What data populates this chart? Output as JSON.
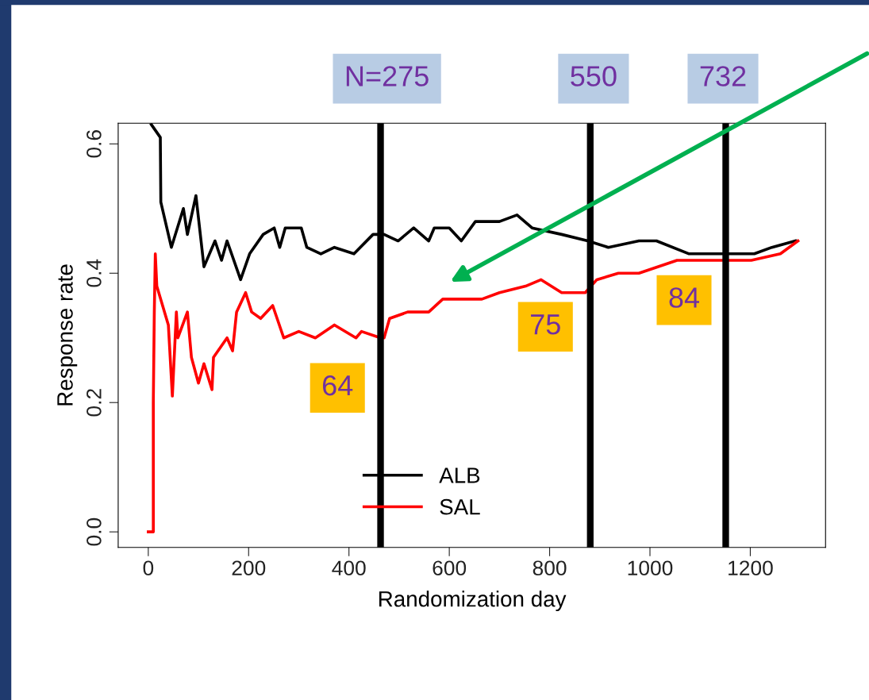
{
  "chart_data": {
    "type": "line",
    "xlabel": "Randomization day",
    "ylabel": "Response rate",
    "xlim": [
      -60,
      1350
    ],
    "ylim": [
      -0.024,
      0.632
    ],
    "xticks": [
      0,
      200,
      400,
      600,
      800,
      1000,
      1200
    ],
    "yticks": [
      {
        "value": 0,
        "label": "0.0"
      },
      0.2,
      0.4,
      0.6
    ],
    "series": [
      {
        "name": "ALB",
        "color": "#000000",
        "x": [
          6,
          24,
          25,
          46,
          70,
          78,
          95,
          111,
          133,
          146,
          157,
          184,
          202,
          229,
          251,
          262,
          273,
          305,
          316,
          344,
          371,
          410,
          448,
          470,
          498,
          529,
          559,
          570,
          600,
          624,
          652,
          700,
          735,
          765,
          824,
          876,
          917,
          978,
          1013,
          1078,
          1143,
          1208,
          1243,
          1290
        ],
        "values": [
          0.63,
          0.61,
          0.51,
          0.44,
          0.5,
          0.46,
          0.52,
          0.41,
          0.45,
          0.42,
          0.45,
          0.39,
          0.43,
          0.46,
          0.47,
          0.44,
          0.47,
          0.47,
          0.44,
          0.43,
          0.44,
          0.43,
          0.46,
          0.46,
          0.45,
          0.47,
          0.45,
          0.47,
          0.47,
          0.45,
          0.48,
          0.48,
          0.49,
          0.47,
          0.46,
          0.45,
          0.44,
          0.45,
          0.45,
          0.43,
          0.43,
          0.43,
          0.44,
          0.45
        ]
      },
      {
        "name": "SAL",
        "color": "#ff0000",
        "x": [
          0,
          10,
          10,
          12,
          14,
          17,
          40,
          48,
          56,
          59,
          78,
          86,
          100,
          111,
          127,
          130,
          157,
          168,
          176,
          194,
          206,
          224,
          248,
          270,
          300,
          333,
          371,
          414,
          425,
          463,
          470,
          481,
          517,
          559,
          587,
          624,
          665,
          700,
          752,
          783,
          824,
          871,
          894,
          937,
          978,
          1054,
          1148,
          1202,
          1260,
          1295
        ],
        "values": [
          0.0,
          0.0,
          0.2,
          0.34,
          0.43,
          0.38,
          0.32,
          0.21,
          0.34,
          0.3,
          0.34,
          0.27,
          0.23,
          0.26,
          0.22,
          0.27,
          0.3,
          0.28,
          0.34,
          0.37,
          0.34,
          0.33,
          0.35,
          0.3,
          0.31,
          0.3,
          0.32,
          0.3,
          0.31,
          0.3,
          0.3,
          0.33,
          0.34,
          0.34,
          0.36,
          0.36,
          0.36,
          0.37,
          0.38,
          0.39,
          0.37,
          0.37,
          0.39,
          0.4,
          0.4,
          0.42,
          0.42,
          0.42,
          0.43,
          0.45
        ]
      }
    ],
    "ref_lines": [
      {
        "axis": "x",
        "value": 463,
        "color": "#000000"
      },
      {
        "axis": "x",
        "value": 881,
        "color": "#000000"
      },
      {
        "axis": "x",
        "value": 1151,
        "color": "#000000"
      }
    ],
    "annotations": [
      "N=275",
      "550",
      "732",
      "64",
      "75",
      "84"
    ],
    "legend": "bottom",
    "grid": false,
    "marker": "none",
    "line_style": "solid"
  }
}
